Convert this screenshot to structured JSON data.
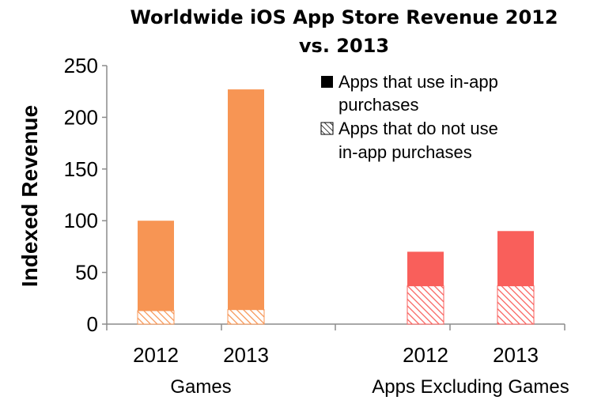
{
  "chart_data": {
    "type": "bar",
    "stacked": true,
    "title": "Worldwide iOS App Store Revenue 2012 vs. 2013",
    "title_lines": [
      "Worldwide iOS App Store Revenue 2012",
      "vs. 2013"
    ],
    "ylabel": "Indexed Revenue",
    "xlabel": "",
    "ylim": [
      0,
      250
    ],
    "yticks": [
      0,
      50,
      100,
      150,
      200,
      250
    ],
    "grid": false,
    "legend_position": "top-right",
    "groups": [
      {
        "label": "Games",
        "categories": [
          "2012",
          "2013"
        ],
        "color": "#F79554"
      },
      {
        "label": "Apps Excluding Games",
        "categories": [
          "2012",
          "2013"
        ],
        "color": "#F95F5B"
      }
    ],
    "categories": [
      "2012",
      "2013",
      "2012",
      "2013"
    ],
    "series": [
      {
        "name": "Apps that do not use in-app purchases",
        "pattern": "hatched",
        "values": [
          13,
          14,
          37,
          37
        ]
      },
      {
        "name": "Apps that use in-app purchases",
        "pattern": "solid",
        "values": [
          87,
          213,
          33,
          53
        ]
      }
    ],
    "legend": [
      {
        "label_lines": [
          "Apps that use in-app",
          "purchases"
        ],
        "swatch": "solid"
      },
      {
        "label_lines": [
          "Apps that do not use",
          "in-app purchases"
        ],
        "swatch": "hatched"
      }
    ]
  }
}
